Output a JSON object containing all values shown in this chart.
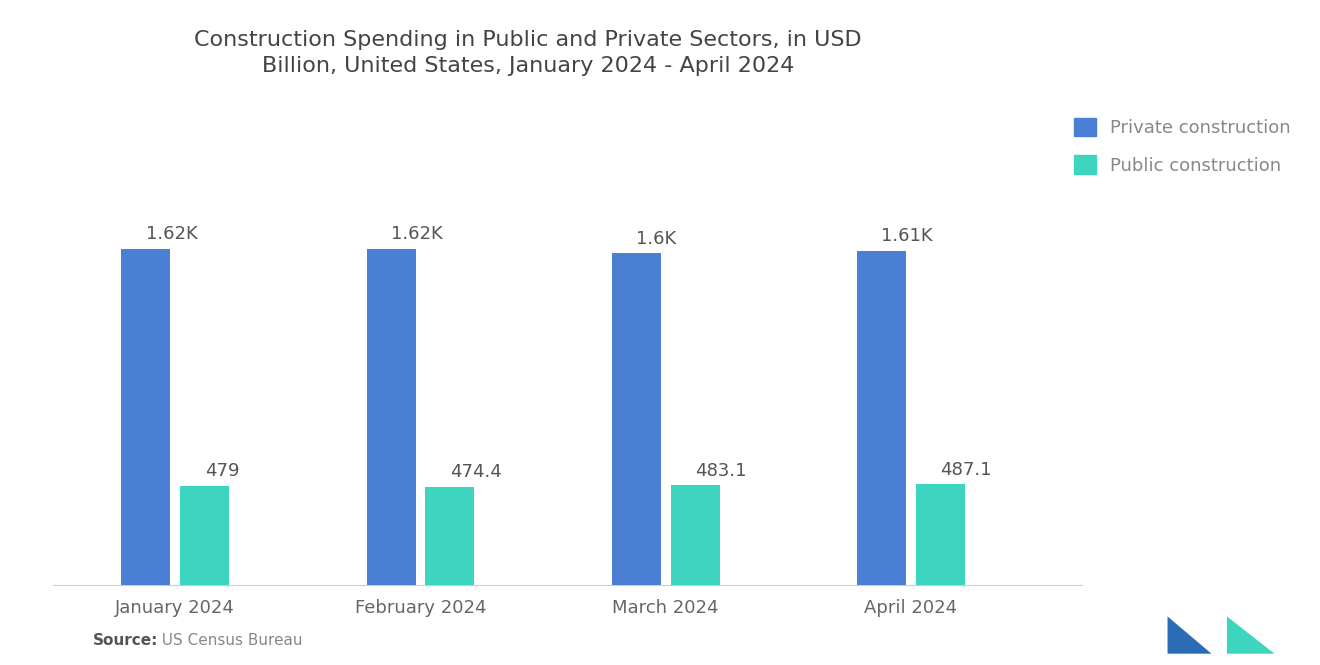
{
  "title": "Construction Spending in Public and Private Sectors, in USD\nBillion, United States, January 2024 - April 2024",
  "categories": [
    "January 2024",
    "February 2024",
    "March 2024",
    "April 2024"
  ],
  "private_values": [
    1620,
    1620,
    1600,
    1610
  ],
  "public_values": [
    479,
    474.4,
    483.1,
    487.1
  ],
  "private_labels": [
    "1.62K",
    "1.62K",
    "1.6K",
    "1.61K"
  ],
  "public_labels": [
    "479",
    "474.4",
    "483.1",
    "487.1"
  ],
  "private_color": "#4a7fd4",
  "public_color": "#3dd4c0",
  "legend_private": "Private construction",
  "legend_public": "Public construction",
  "source_bold": "Source:",
  "source_normal": "  US Census Bureau",
  "background_color": "#ffffff",
  "title_fontsize": 16,
  "label_fontsize": 13,
  "tick_fontsize": 13,
  "legend_fontsize": 13,
  "bar_width": 0.2,
  "ylim": [
    0,
    2400
  ],
  "xlim_left": -0.5,
  "xlim_right": 3.7
}
